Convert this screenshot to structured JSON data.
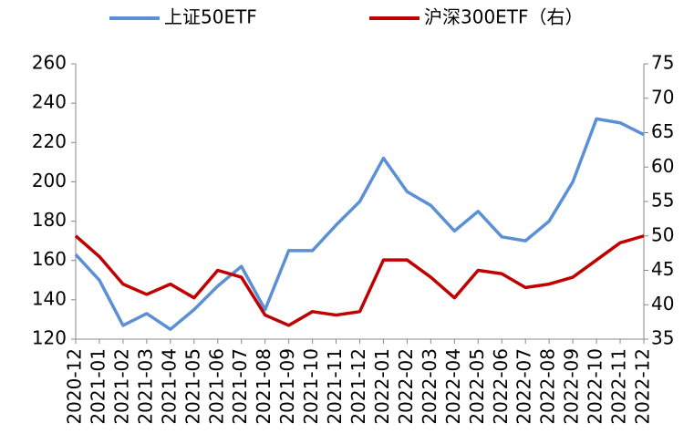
{
  "chart_data": {
    "type": "line",
    "x": [
      "2020-12",
      "2021-01",
      "2021-02",
      "2021-03",
      "2021-04",
      "2021-05",
      "2021-06",
      "2021-07",
      "2021-08",
      "2021-09",
      "2021-10",
      "2021-11",
      "2021-12",
      "2022-01",
      "2022-02",
      "2022-03",
      "2022-04",
      "2022-05",
      "2022-06",
      "2022-07",
      "2022-08",
      "2022-09",
      "2022-10",
      "2022-11",
      "2022-12"
    ],
    "series": [
      {
        "name": "上证50ETF",
        "color": "#5b8fd6",
        "values": [
          163,
          150,
          127,
          133,
          125,
          135,
          147,
          157,
          135,
          165,
          165,
          178,
          190,
          212,
          195,
          188,
          175,
          185,
          172,
          170,
          180,
          200,
          232,
          230,
          224
        ]
      },
      {
        "name": "沪深300ETF（右）",
        "color": "#c00000",
        "axis": "y2",
        "values": [
          50,
          47,
          43,
          41.5,
          43,
          41,
          45,
          44,
          38.5,
          37,
          39,
          38.5,
          39,
          46.5,
          46.5,
          44,
          41,
          45,
          44.5,
          42.5,
          43,
          44,
          46.5,
          49,
          50
        ]
      }
    ],
    "ylim": [
      120,
      260
    ],
    "yticks": [
      120,
      140,
      160,
      180,
      200,
      220,
      240,
      260
    ],
    "y2lim": [
      35,
      75
    ],
    "y2ticks": [
      35,
      40,
      45,
      50,
      55,
      60,
      65,
      70,
      75
    ],
    "legend": "top"
  }
}
